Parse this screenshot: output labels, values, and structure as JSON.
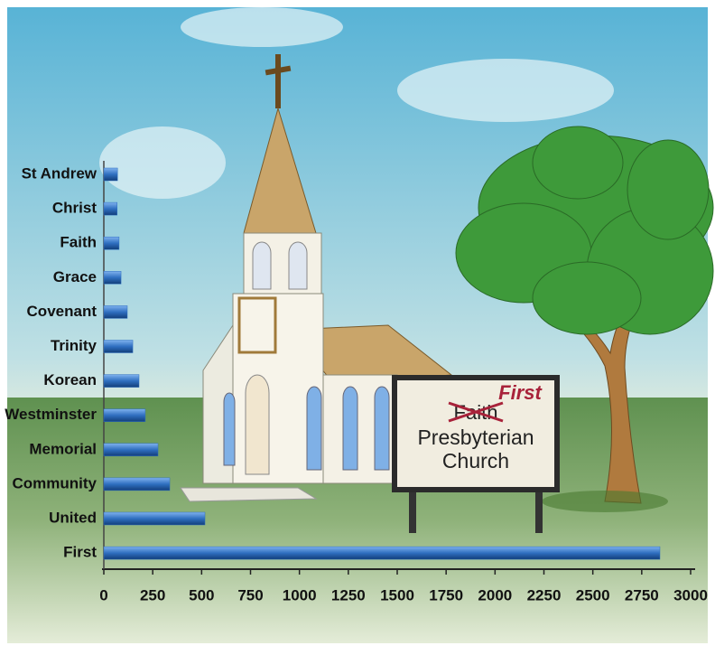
{
  "chart_data": {
    "type": "bar",
    "orientation": "horizontal",
    "categories": [
      "St Andrew",
      "Christ",
      "Faith",
      "Grace",
      "Covenant",
      "Trinity",
      "Korean",
      "Westminster",
      "Memorial",
      "Community",
      "United",
      "First"
    ],
    "values": [
      70,
      68,
      78,
      88,
      120,
      148,
      180,
      212,
      277,
      337,
      517,
      2843
    ],
    "color": "#2f6fc0",
    "xlim": [
      0,
      3000
    ],
    "xticks": [
      0,
      250,
      500,
      750,
      1000,
      1250,
      1500,
      1750,
      2000,
      2250,
      2500,
      2750,
      3000
    ],
    "grid": false
  },
  "sign": {
    "struck": "Faith",
    "correction": "First",
    "lines": [
      "Presbyterian",
      "Church"
    ]
  }
}
